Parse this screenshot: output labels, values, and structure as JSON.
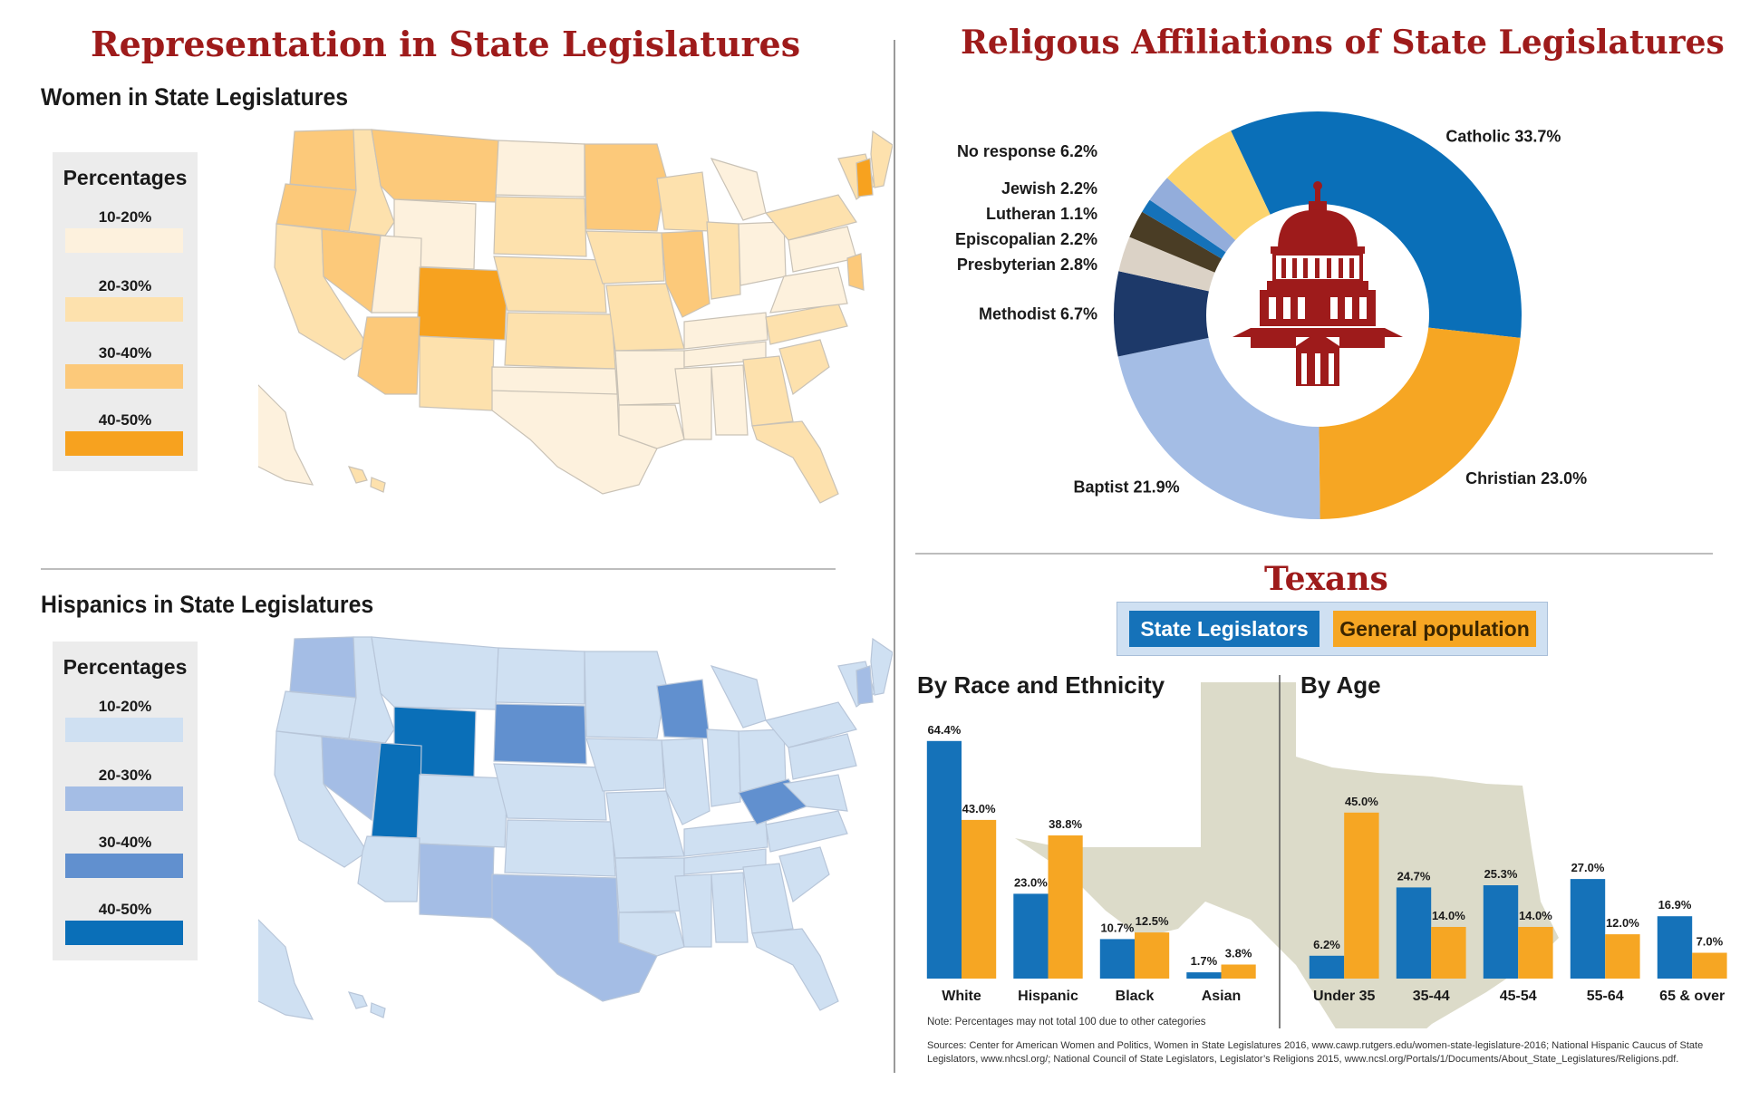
{
  "left": {
    "title": "Representation in State Legislatures",
    "women": {
      "subtitle": "Women in State Legislatures",
      "legend_title": "Percentages",
      "legend": [
        {
          "label": "10-20%",
          "color": "#fdf1dd"
        },
        {
          "label": "20-30%",
          "color": "#fde1ad"
        },
        {
          "label": "30-40%",
          "color": "#fcc97a"
        },
        {
          "label": "40-50%",
          "color": "#f7a21f"
        }
      ]
    },
    "hispanics": {
      "subtitle": "Hispanics in State Legislatures",
      "legend_title": "Percentages",
      "legend": [
        {
          "label": "10-20%",
          "color": "#cfe0f2"
        },
        {
          "label": "20-30%",
          "color": "#a4bde5"
        },
        {
          "label": "30-40%",
          "color": "#6190cf"
        },
        {
          "label": "40-50%",
          "color": "#0a6fb8"
        }
      ]
    }
  },
  "right": {
    "title": "Religous Affiliations of State Legislatures",
    "texans_title": "Texans",
    "legend": {
      "state": "State Legislators",
      "general": "General population"
    },
    "race_title": "By Race and Ethnicity",
    "age_title": "By Age",
    "note": "Note: Percentages may not total 100 due to other categories",
    "sources_1": "Sources: Center for American Women and Politics, Women in State Legislatures 2016, www.cawp.rutgers.edu/women-state-legislature-2016; National Hispanic Caucus of State",
    "sources_2": "Legislators, www.nhcsl.org/; National Council of State Legislators, Legislator’s Religions 2015, www.ncsl.org/Portals/1/Documents/About_State_Legislatures/Religions.pdf."
  },
  "colors": {
    "state_blue": "#1572b9",
    "general_orange": "#f6a623",
    "title_red": "#9e1b1b",
    "texas_shape": "#dcdbc9"
  },
  "chart_data": [
    {
      "type": "pie",
      "title": "Religous Affiliations of State Legislatures",
      "slices": [
        {
          "label": "Catholic",
          "value": 33.7,
          "text": "Catholic 33.7%",
          "color": "#0a6fb8"
        },
        {
          "label": "Christian",
          "value": 23.0,
          "text": "Christian 23.0%",
          "color": "#f6a623"
        },
        {
          "label": "Baptist",
          "value": 21.9,
          "text": "Baptist 21.9%",
          "color": "#a4bde5"
        },
        {
          "label": "Methodist",
          "value": 6.7,
          "text": "Methodist 6.7%",
          "color": "#1d3969"
        },
        {
          "label": "Presbyterian",
          "value": 2.8,
          "text": "Presbyterian 2.8%",
          "color": "#dbd2c6"
        },
        {
          "label": "Episcopalian",
          "value": 2.2,
          "text": "Episcopalian 2.2%",
          "color": "#4a3d25"
        },
        {
          "label": "Lutheran",
          "value": 1.1,
          "text": "Lutheran 1.1%",
          "color": "#1572b9"
        },
        {
          "label": "Jewish",
          "value": 2.2,
          "text": "Jewish 2.2%",
          "color": "#93addb"
        },
        {
          "label": "No response",
          "value": 6.2,
          "text": "No response 6.2%",
          "color": "#fcd46e"
        }
      ]
    },
    {
      "type": "bar",
      "title": "By Race and Ethnicity",
      "categories": [
        "White",
        "Hispanic",
        "Black",
        "Asian"
      ],
      "series": [
        {
          "name": "State Legislators",
          "values": [
            64.4,
            23.0,
            10.7,
            1.7
          ],
          "labels": [
            "64.4%",
            "23.0%",
            "10.7%",
            "1.7%"
          ]
        },
        {
          "name": "General population",
          "values": [
            43.0,
            38.8,
            12.5,
            3.8
          ],
          "labels": [
            "43.0%",
            "38.8%",
            "12.5%",
            "3.8%"
          ]
        }
      ],
      "ylim": [
        0,
        70
      ]
    },
    {
      "type": "bar",
      "title": "By Age",
      "categories": [
        "Under 35",
        "35-44",
        "45-54",
        "55-64",
        "65 & over"
      ],
      "series": [
        {
          "name": "State Legislators",
          "values": [
            6.2,
            24.7,
            25.3,
            27.0,
            16.9
          ],
          "labels": [
            "6.2%",
            "24.7%",
            "25.3%",
            "27.0%",
            "16.9%"
          ]
        },
        {
          "name": "General population",
          "values": [
            45.0,
            14.0,
            14.0,
            12.0,
            7.0
          ],
          "labels": [
            "45.0%",
            "14.0%",
            "14.0%",
            "12.0%",
            "7.0%"
          ]
        }
      ],
      "ylim": [
        0,
        70
      ]
    }
  ]
}
